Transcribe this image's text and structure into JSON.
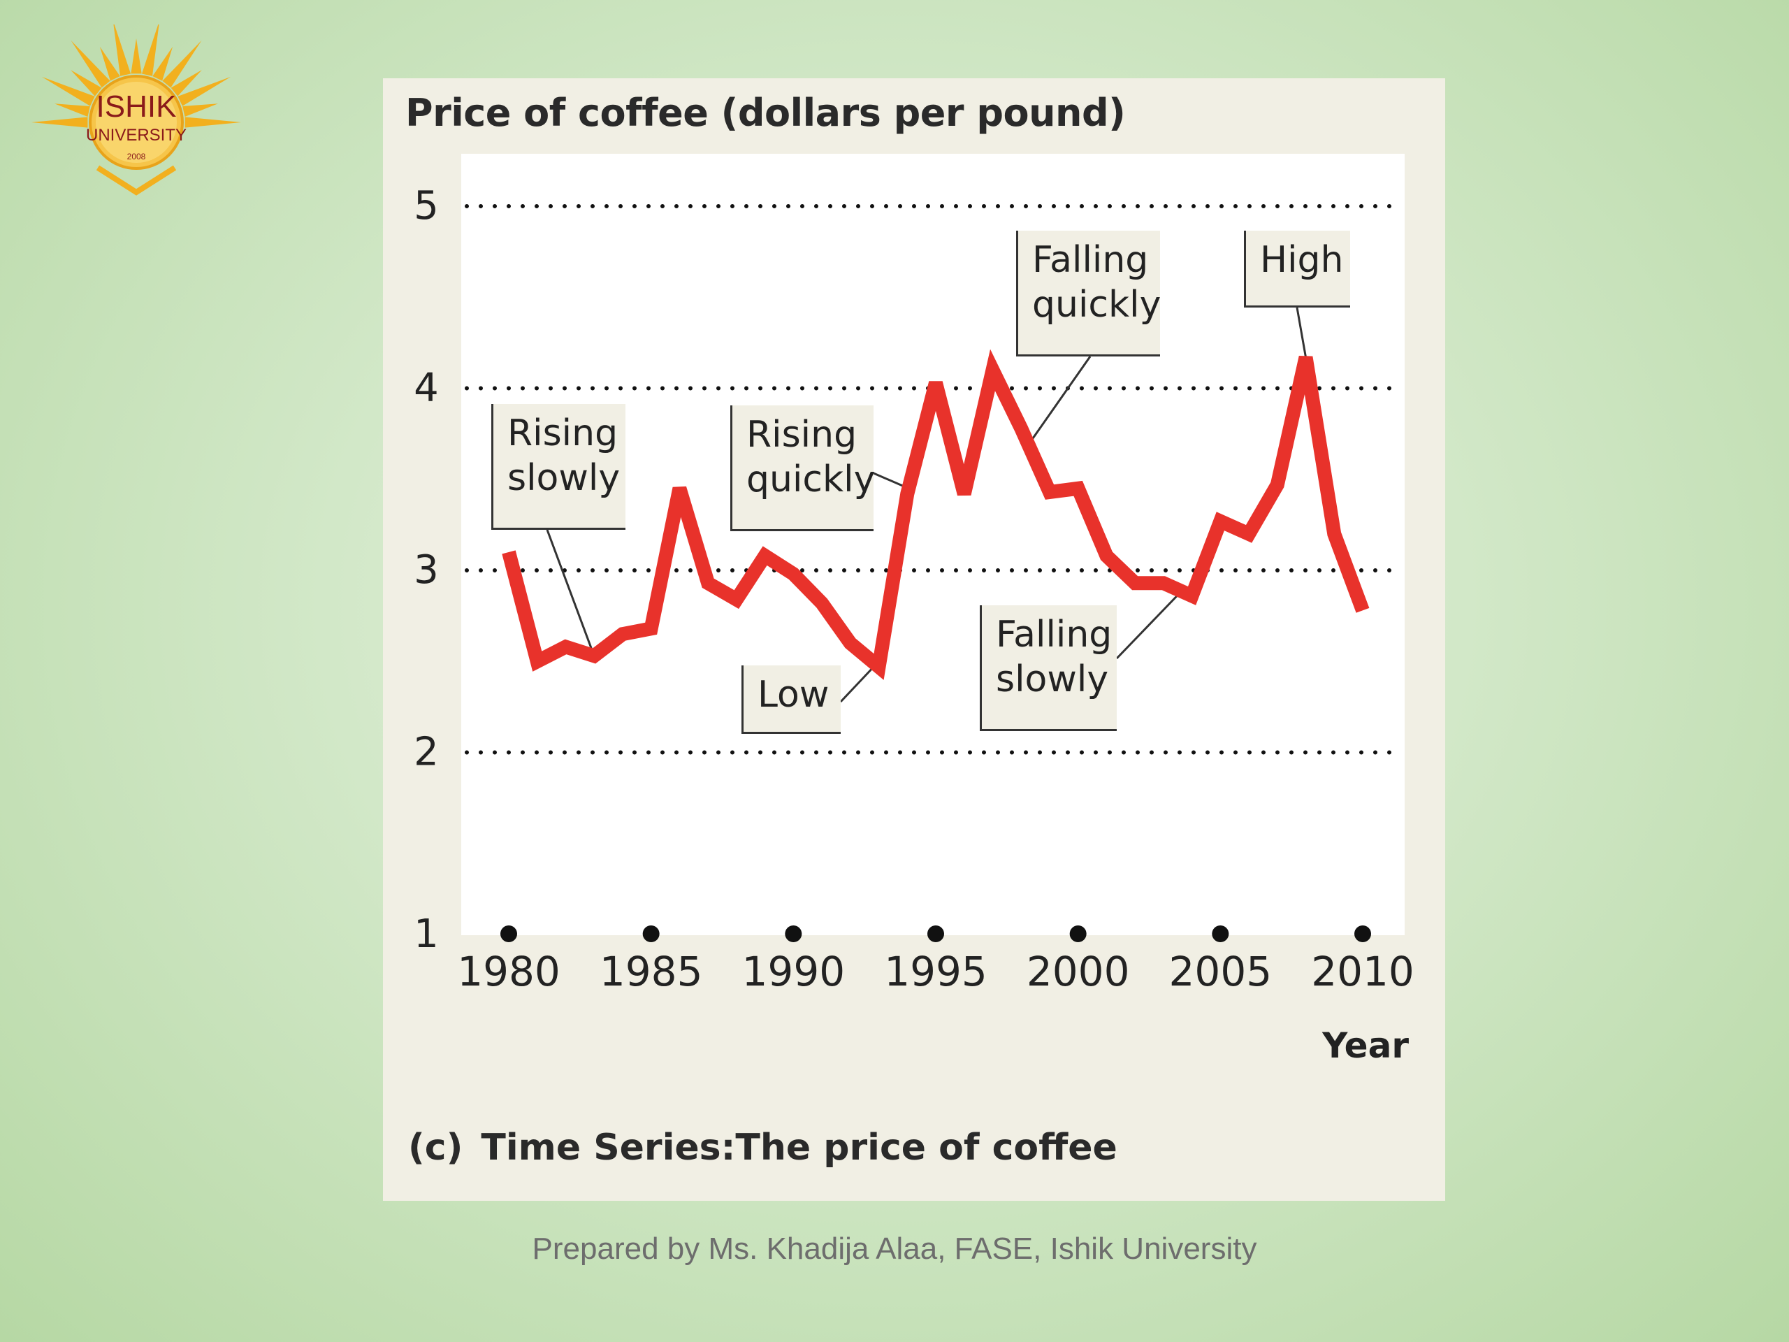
{
  "logo": {
    "name": "ISHIK",
    "subtitle": "UNIVERSITY",
    "year": "2008",
    "colors": {
      "rays": "#f2b01e",
      "text": "#8a1a1a"
    }
  },
  "panel_title": "Price of coffee (dollars per pound)",
  "x_axis_title": "Year",
  "caption": {
    "label": "(c)",
    "text": "Time Series:The price of coffee"
  },
  "callouts": {
    "rising_slowly": [
      "Rising",
      "slowly"
    ],
    "rising_quickly": [
      "Rising",
      "quickly"
    ],
    "low": [
      "Low"
    ],
    "falling_quickly": [
      "Falling",
      "quickly"
    ],
    "high": [
      "High"
    ],
    "falling_slowly": [
      "Falling",
      "slowly"
    ]
  },
  "footer": "Prepared by Ms. Khadija Alaa, FASE, Ishik University",
  "chart_data": {
    "type": "line",
    "title": "Price of coffee (dollars per pound)",
    "xlabel": "Year",
    "ylabel": "",
    "xlim": [
      1980,
      2010
    ],
    "ylim": [
      1,
      5
    ],
    "x_ticks": [
      1980,
      1985,
      1990,
      1995,
      2000,
      2005,
      2010
    ],
    "y_ticks": [
      1,
      2,
      3,
      4,
      5
    ],
    "x_tick_labels": [
      "1980",
      "1985",
      "1990",
      "1995",
      "2000",
      "2005",
      "2010"
    ],
    "y_tick_labels": [
      "1",
      "2",
      "3",
      "4",
      "5"
    ],
    "grid": "dotted horizontal lines at 2, 3, 4, 5",
    "series": [
      {
        "color": "#e8322b",
        "x": [
          1980,
          1981,
          1982,
          1983,
          1984,
          1985,
          1986,
          1987,
          1988,
          1989,
          1990,
          1991,
          1992,
          1993,
          1994,
          1995,
          1996,
          1997,
          1998,
          1999,
          2000,
          2001,
          2002,
          2003,
          2004,
          2005,
          2006,
          2007,
          2008,
          2009,
          2010
        ],
        "y": [
          3.1,
          2.5,
          2.58,
          2.53,
          2.65,
          2.68,
          3.45,
          2.93,
          2.84,
          3.08,
          2.98,
          2.82,
          2.6,
          2.47,
          3.42,
          4.03,
          3.42,
          4.1,
          3.78,
          3.43,
          3.45,
          3.08,
          2.93,
          2.93,
          2.86,
          3.27,
          3.2,
          3.47,
          4.17,
          3.2,
          2.78
        ]
      }
    ],
    "annotations": [
      {
        "text": "Rising slowly",
        "x": 1983,
        "y": 2.53
      },
      {
        "text": "Rising quickly",
        "x": 1993.9,
        "y": 3.46
      },
      {
        "text": "Low",
        "x": 1993,
        "y": 2.5
      },
      {
        "text": "Falling quickly",
        "x": 1998.3,
        "y": 3.7
      },
      {
        "text": "High",
        "x": 2008,
        "y": 4.17
      },
      {
        "text": "Falling slowly",
        "x": 2003.6,
        "y": 2.88
      }
    ]
  }
}
